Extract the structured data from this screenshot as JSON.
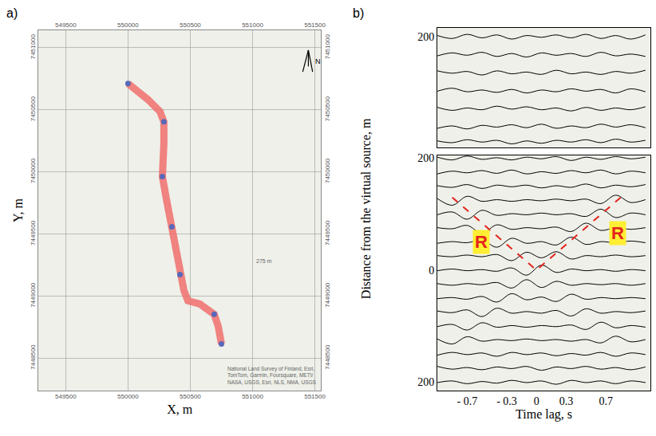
{
  "chart_data": [
    {
      "type": "line",
      "label": "a)",
      "x_label": "X, m",
      "y_label": "Y, m",
      "xlim": [
        549280,
        551550
      ],
      "xticks": [
        549500,
        550000,
        550500,
        551000,
        551500
      ],
      "ylim": [
        7448240,
        7451140
      ],
      "yticks": [
        7448500,
        7449000,
        7449500,
        7450000,
        7450500,
        7451000
      ],
      "grid": true,
      "color": "#f06e6c",
      "x": [
        550000,
        550160,
        550256,
        550288,
        550288,
        550276,
        550308,
        550352,
        550385,
        550417,
        550449,
        550481,
        550577,
        550692,
        550724,
        550750
      ],
      "y": [
        7450712,
        7450583,
        7450487,
        7450404,
        7450231,
        7449962,
        7449782,
        7449558,
        7449397,
        7449173,
        7449045,
        7448962,
        7448936,
        7448853,
        7448757,
        7448615
      ],
      "stations": {
        "x": [
          550000,
          550288,
          550276,
          550352,
          550417,
          550692,
          550750
        ],
        "y": [
          7450712,
          7450404,
          7449962,
          7449558,
          7449173,
          7448853,
          7448615
        ],
        "color": "#5a68b8",
        "marker": "circle"
      },
      "annotations": [
        {
          "text": "275 m",
          "x": 551090,
          "y": 7449282
        }
      ],
      "north_label": "N",
      "attribution": [
        "National Land Survey of Finland, Esri,",
        "TomTom, Garmin, Foursquare, METI/",
        "NASA, USGS, Esri, NLS, NMA, USGS"
      ]
    },
    {
      "type": "wiggle",
      "label": "b)",
      "x_label": "Time lag, s",
      "y_label": "Distance from the virtual source, m",
      "xlim": [
        -1.0,
        1.15
      ],
      "xticks": [
        {
          "value": -0.7,
          "label": "- 0.7"
        },
        {
          "value": -0.3,
          "label": "- 0.3"
        },
        0,
        0.3,
        0.7
      ],
      "time": [
        -1.0,
        -0.85,
        -0.7,
        -0.55,
        -0.4,
        -0.25,
        -0.1,
        0.05,
        0.2,
        0.35,
        0.5,
        0.65,
        0.8,
        0.95,
        1.1
      ],
      "sections": [
        {
          "ylim": [
            15,
            215
          ],
          "yticks": [
            200
          ],
          "traces": [
            {
              "distance": 200,
              "values": [
                2,
                -3,
                4,
                -2,
                3,
                -4,
                2,
                -1,
                3,
                -2,
                4,
                -3,
                2,
                -4,
                3
              ]
            },
            {
              "distance": 170,
              "values": [
                -2,
                3,
                -1,
                4,
                -3,
                2,
                -4,
                3,
                -1,
                2,
                -3,
                4,
                -2,
                1,
                -3
              ]
            },
            {
              "distance": 140,
              "values": [
                3,
                -1,
                2,
                -4,
                3,
                -2,
                1,
                -3,
                4,
                -2,
                1,
                -3,
                2,
                -1,
                4
              ]
            },
            {
              "distance": 110,
              "values": [
                -1,
                4,
                -2,
                1,
                -3,
                2,
                -4,
                1,
                -2,
                3,
                -1,
                2,
                -4,
                3,
                -2
              ]
            },
            {
              "distance": 80,
              "values": [
                2,
                -3,
                1,
                -2,
                4,
                -1,
                3,
                -2,
                1,
                -4,
                2,
                -3,
                1,
                -2,
                3
              ]
            },
            {
              "distance": 50,
              "values": [
                -3,
                1,
                -4,
                2,
                -1,
                3,
                -2,
                4,
                -3,
                1,
                -2,
                4,
                -1,
                3,
                -2
              ]
            },
            {
              "distance": 25,
              "values": [
                1,
                -2,
                3,
                -1,
                2,
                -4,
                1,
                -3,
                2,
                -1,
                3,
                -2,
                4,
                -1,
                2
              ]
            }
          ]
        },
        {
          "ylim": [
            -215,
            205
          ],
          "yticks": [
            {
              "value": -200,
              "label": "200"
            },
            0,
            200
          ],
          "traces": [
            {
              "distance": 200,
              "values": [
                2,
                -3,
                4,
                -2,
                1,
                -3,
                2,
                -1,
                3,
                -4,
                2,
                -2,
                3,
                -1,
                2
              ]
            },
            {
              "distance": 175,
              "values": [
                -3,
                2,
                -1,
                3,
                -2,
                4,
                -3,
                1,
                -2,
                3,
                -1,
                4,
                -3,
                2,
                -1
              ]
            },
            {
              "distance": 150,
              "values": [
                1,
                -2,
                3,
                -4,
                2,
                -1,
                2,
                -3,
                1,
                -2,
                4,
                -3,
                2,
                -1,
                3
              ]
            },
            {
              "distance": 125,
              "values": [
                3,
                -9,
                7,
                -2,
                1,
                -2,
                1,
                -1,
                2,
                -1,
                2,
                -6,
                9,
                -4,
                1
              ]
            },
            {
              "distance": 100,
              "values": [
                -1,
                4,
                -9,
                7,
                -2,
                1,
                -1,
                2,
                -1,
                1,
                -4,
                9,
                -6,
                2,
                -1
              ]
            },
            {
              "distance": 75,
              "values": [
                1,
                -1,
                5,
                -9,
                6,
                -2,
                1,
                -1,
                2,
                -6,
                9,
                -4,
                1,
                -2,
                1
              ]
            },
            {
              "distance": 50,
              "values": [
                -2,
                1,
                -1,
                4,
                -9,
                7,
                -2,
                1,
                -5,
                9,
                -4,
                1,
                -1,
                2,
                -1
              ]
            },
            {
              "distance": 25,
              "values": [
                1,
                -1,
                2,
                -1,
                3,
                -8,
                7,
                -3,
                8,
                -5,
                1,
                -1,
                2,
                -1,
                1
              ]
            },
            {
              "distance": 0,
              "values": [
                -1,
                2,
                -1,
                1,
                -2,
                4,
                -9,
                9,
                -4,
                2,
                -1,
                1,
                -2,
                1,
                -1
              ]
            },
            {
              "distance": -25,
              "values": [
                1,
                -2,
                1,
                -1,
                3,
                -7,
                8,
                -6,
                5,
                -2,
                1,
                -1,
                1,
                -2,
                1
              ]
            },
            {
              "distance": -50,
              "values": [
                -1,
                1,
                -2,
                3,
                -7,
                8,
                -3,
                2,
                -6,
                7,
                -2,
                1,
                -1,
                1,
                -1
              ]
            },
            {
              "distance": -75,
              "values": [
                2,
                -1,
                4,
                -8,
                7,
                -2,
                1,
                -2,
                3,
                -7,
                6,
                -2,
                1,
                -1,
                2
              ]
            },
            {
              "distance": -100,
              "values": [
                -1,
                3,
                -7,
                6,
                -2,
                1,
                -2,
                1,
                -1,
                2,
                -6,
                7,
                -3,
                1,
                -2
              ]
            },
            {
              "distance": -125,
              "values": [
                2,
                -7,
                6,
                -2,
                1,
                -1,
                2,
                -1,
                1,
                -2,
                1,
                -5,
                7,
                -3,
                1
              ]
            },
            {
              "distance": -150,
              "values": [
                -2,
                3,
                -1,
                2,
                -4,
                3,
                -1,
                2,
                -3,
                1,
                -2,
                3,
                -4,
                2,
                -1
              ]
            },
            {
              "distance": -175,
              "values": [
                3,
                -2,
                1,
                -3,
                2,
                -1,
                3,
                -4,
                2,
                -1,
                3,
                -2,
                1,
                -3,
                2
              ]
            },
            {
              "distance": -200,
              "values": [
                -1,
                2,
                -3,
                1,
                -2,
                3,
                -1,
                2,
                -4,
                3,
                -1,
                2,
                -3,
                2,
                -1
              ]
            }
          ]
        }
      ],
      "color": "#000000",
      "picks": {
        "x": [
          -0.85,
          0,
          0.85
        ],
        "y": [
          130,
          0,
          130
        ],
        "color": "#e3231c",
        "line_style": "dash"
      },
      "annotations": [
        {
          "text": "R",
          "x": -0.56,
          "y": 50,
          "color": "#e3231c"
        },
        {
          "text": "R",
          "x": 0.82,
          "y": 66,
          "color": "#e3231c"
        }
      ]
    }
  ]
}
